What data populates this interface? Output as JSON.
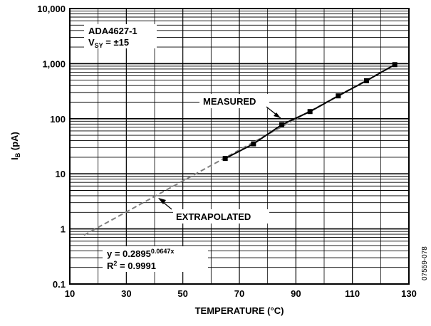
{
  "chart_data": {
    "type": "line",
    "title": "",
    "xlabel": "TEMPERATURE (°C)",
    "ylabel_main": "I",
    "ylabel_sub": "B",
    "ylabel_unit": " (pA)",
    "xlim": [
      10,
      130
    ],
    "ylim": [
      0.1,
      10000
    ],
    "yscale": "log",
    "grid": true,
    "x_ticks": [
      10,
      30,
      50,
      70,
      90,
      110,
      130
    ],
    "y_ticks": [
      {
        "value": 0.1,
        "label": "0.1"
      },
      {
        "value": 1,
        "label": "1"
      },
      {
        "value": 10,
        "label": "10"
      },
      {
        "value": 100,
        "label": "100"
      },
      {
        "value": 1000,
        "label": "1,000"
      },
      {
        "value": 10000,
        "label": "10,000"
      }
    ],
    "device_label": "ADA4627-1",
    "supply_label_main": "V",
    "supply_label_sub": "SY",
    "supply_label_rest": " = ±15",
    "series": [
      {
        "name": "MEASURED",
        "style": "solid",
        "color": "#000000",
        "x": [
          65,
          75,
          85,
          95,
          105,
          115,
          125
        ],
        "y": [
          19,
          35,
          78,
          135,
          260,
          490,
          960
        ]
      },
      {
        "name": "EXTRAPOLATED",
        "style": "dashed",
        "color": "#808080",
        "x": [
          15,
          125
        ],
        "y": [
          0.77,
          955
        ]
      }
    ],
    "fit_equation_prefix": "y = 0.2895",
    "fit_equation_exponent": "0.0647x",
    "fit_r2_prefix": "R",
    "fit_r2_exponent": "2",
    "fit_r2_suffix": " = 0.9991",
    "figure_id": "07559-078"
  }
}
